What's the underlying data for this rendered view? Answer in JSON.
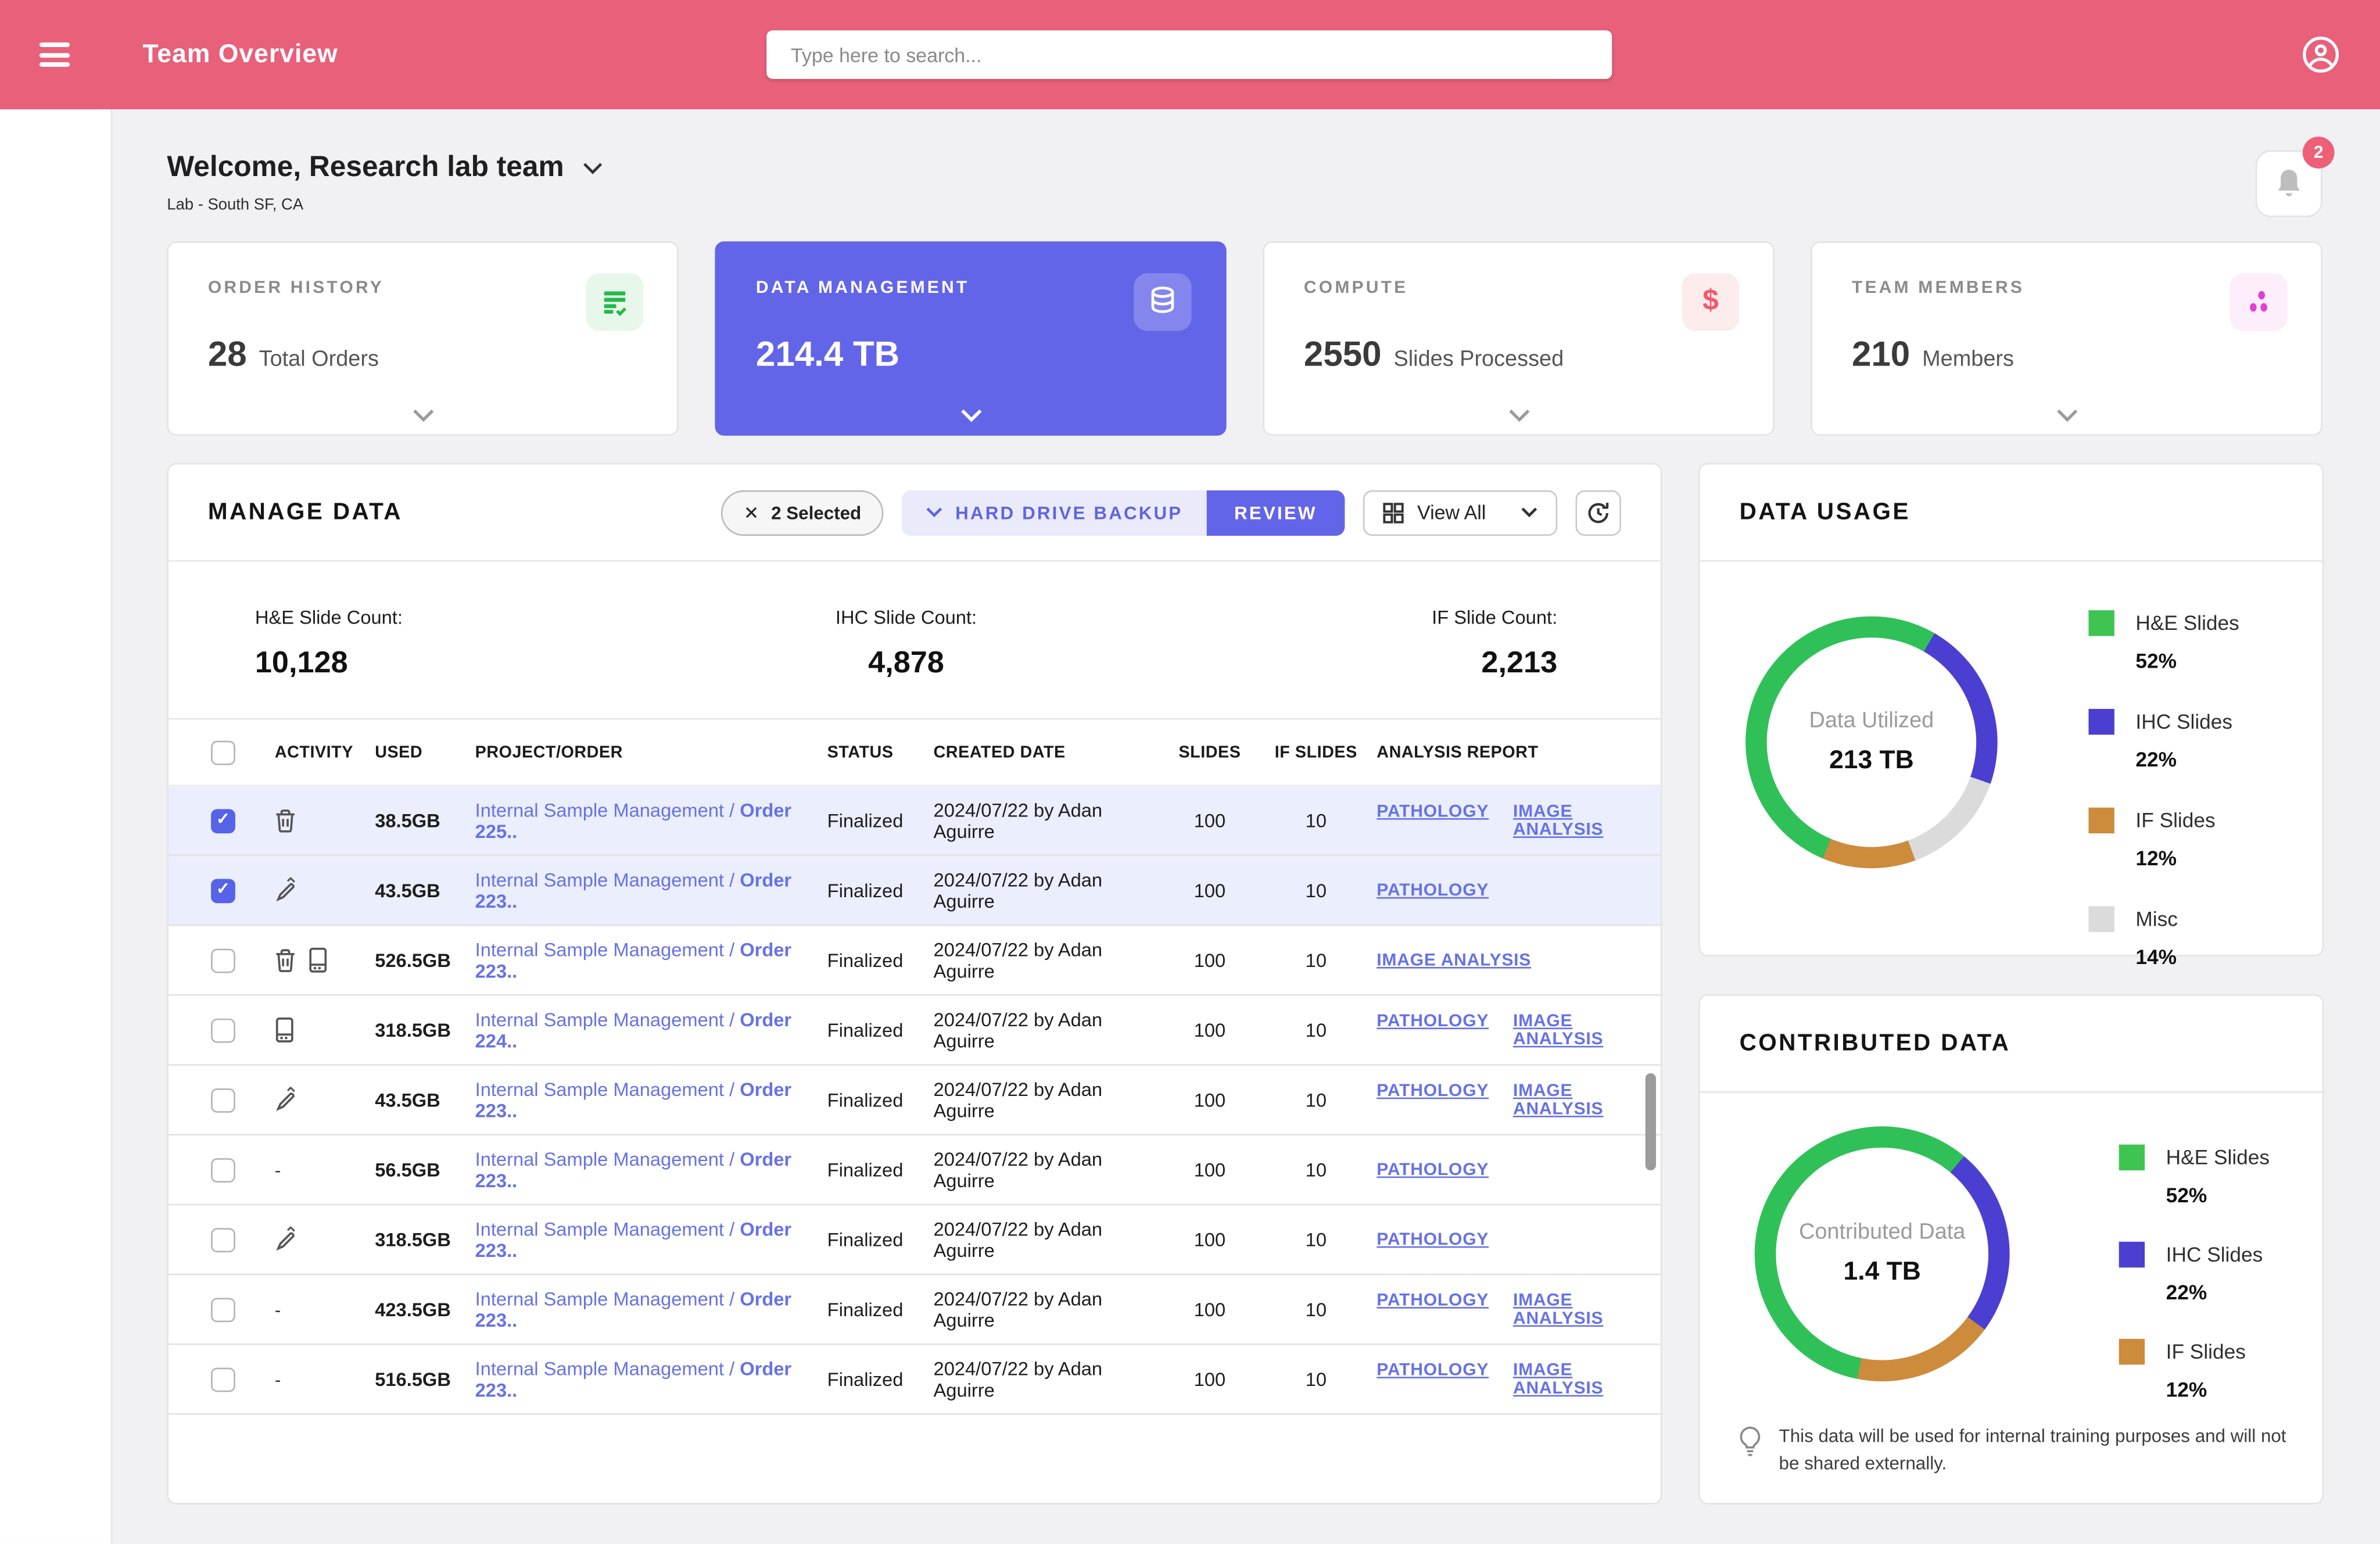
{
  "header": {
    "title": "Team Overview",
    "search_placeholder": "Type here to search..."
  },
  "welcome": {
    "greeting": "Welcome, Research lab team",
    "location": "Lab - South SF, CA",
    "notification_count": "2"
  },
  "stat_cards": [
    {
      "label": "ORDER HISTORY",
      "value": "28",
      "unit": "Total Orders",
      "icon": "order-checklist-icon",
      "accent": "#2fbf4e"
    },
    {
      "label": "DATA MANAGEMENT",
      "value": "214.4 TB",
      "unit": "",
      "icon": "database-icon",
      "accent": "#6365e8"
    },
    {
      "label": "COMPUTE",
      "value": "2550",
      "unit": "Slides Processed",
      "icon": "dollar-icon",
      "accent": "#f4586b"
    },
    {
      "label": "TEAM MEMBERS",
      "value": "210",
      "unit": "Members",
      "icon": "members-dots-icon",
      "accent": "#e23fd4"
    }
  ],
  "manage_data": {
    "title": "MANAGE DATA",
    "selected_chip": "2 Selected",
    "backup_button": "HARD DRIVE BACKUP",
    "review_button": "REVIEW",
    "view_all": "View All",
    "counts": [
      {
        "label": "H&E Slide Count:",
        "value": "10,128"
      },
      {
        "label": "IHC Slide Count:",
        "value": "4,878"
      },
      {
        "label": "IF Slide Count:",
        "value": "2,213"
      }
    ],
    "columns": {
      "activity": "ACTIVITY",
      "used": "USED",
      "project": "PROJECT/ORDER",
      "status": "STATUS",
      "created": "CREATED DATE",
      "slides": "SLIDES",
      "if_slides": "IF SLIDES",
      "report": "ANALYSIS REPORT"
    },
    "project_label": "Internal Sample Management / ",
    "rows": [
      {
        "checked": true,
        "activity": [
          "trash-icon"
        ],
        "used": "38.5GB",
        "order": "Order 225..",
        "status": "Finalized",
        "created": "2024/07/22 by Adan Aguirre",
        "slides": "100",
        "if_slides": "10",
        "reports": [
          "PATHOLOGY",
          "IMAGE ANALYSIS"
        ]
      },
      {
        "checked": true,
        "activity": [
          "fact-check-icon"
        ],
        "used": "43.5GB",
        "order": "Order 223..",
        "status": "Finalized",
        "created": "2024/07/22 by Adan Aguirre",
        "slides": "100",
        "if_slides": "10",
        "reports": [
          "PATHOLOGY"
        ]
      },
      {
        "checked": false,
        "activity": [
          "trash-icon",
          "storage-icon"
        ],
        "used": "526.5GB",
        "order": "Order 223..",
        "status": "Finalized",
        "created": "2024/07/22 by Adan Aguirre",
        "slides": "100",
        "if_slides": "10",
        "reports": [
          "IMAGE ANALYSIS"
        ]
      },
      {
        "checked": false,
        "activity": [
          "storage-icon"
        ],
        "used": "318.5GB",
        "order": "Order 224..",
        "status": "Finalized",
        "created": "2024/07/22 by Adan Aguirre",
        "slides": "100",
        "if_slides": "10",
        "reports": [
          "PATHOLOGY",
          "IMAGE ANALYSIS"
        ]
      },
      {
        "checked": false,
        "activity": [
          "fact-check-icon"
        ],
        "used": "43.5GB",
        "order": "Order 223..",
        "status": "Finalized",
        "created": "2024/07/22 by Adan Aguirre",
        "slides": "100",
        "if_slides": "10",
        "reports": [
          "PATHOLOGY",
          "IMAGE ANALYSIS"
        ]
      },
      {
        "checked": false,
        "activity": [],
        "activity_text": "-",
        "used": "56.5GB",
        "order": "Order 223..",
        "status": "Finalized",
        "created": "2024/07/22 by Adan Aguirre",
        "slides": "100",
        "if_slides": "10",
        "reports": [
          "PATHOLOGY"
        ]
      },
      {
        "checked": false,
        "activity": [
          "fact-check-icon"
        ],
        "used": "318.5GB",
        "order": "Order 223..",
        "status": "Finalized",
        "created": "2024/07/22 by Adan Aguirre",
        "slides": "100",
        "if_slides": "10",
        "reports": [
          "PATHOLOGY"
        ]
      },
      {
        "checked": false,
        "activity": [],
        "activity_text": "-",
        "used": "423.5GB",
        "order": "Order 223..",
        "status": "Finalized",
        "created": "2024/07/22 by Adan Aguirre",
        "slides": "100",
        "if_slides": "10",
        "reports": [
          "PATHOLOGY",
          "IMAGE ANALYSIS"
        ]
      },
      {
        "checked": false,
        "activity": [],
        "activity_text": "-",
        "used": "516.5GB",
        "order": "Order 223..",
        "status": "Finalized",
        "created": "2024/07/22 by Adan Aguirre",
        "slides": "100",
        "if_slides": "10",
        "reports": [
          "PATHOLOGY",
          "IMAGE ANALYSIS"
        ]
      }
    ]
  },
  "data_usage": {
    "title": "DATA USAGE",
    "center_label": "Data Utilized",
    "center_value": "213 TB",
    "legend": [
      {
        "label": "H&E Slides",
        "pct": "52%",
        "color": "#3fc452"
      },
      {
        "label": "IHC Slides",
        "pct": "22%",
        "color": "#4b3fd1"
      },
      {
        "label": "IF Slides",
        "pct": "12%",
        "color": "#cd8b3c"
      },
      {
        "label": "Misc",
        "pct": "14%",
        "color": "#dbdbdb"
      }
    ]
  },
  "contributed_data": {
    "title": "CONTRIBUTED DATA",
    "center_label": "Contributed Data",
    "center_value": "1.4 TB",
    "legend": [
      {
        "label": "H&E Slides",
        "pct": "52%",
        "color": "#3fc452"
      },
      {
        "label": "IHC Slides",
        "pct": "22%",
        "color": "#4b3fd1"
      },
      {
        "label": "IF Slides",
        "pct": "12%",
        "color": "#cd8b3c"
      }
    ],
    "note": "This data will be used for internal training purposes and will not be shared externally."
  },
  "chart_data": [
    {
      "type": "pie",
      "title": "Data Usage",
      "categories": [
        "H&E Slides",
        "IHC Slides",
        "IF Slides",
        "Misc"
      ],
      "values": [
        52,
        22,
        12,
        14
      ],
      "center_label": "Data Utilized",
      "center_value": "213 TB",
      "colors": [
        "#3fc452",
        "#4b3fd1",
        "#cd8b3c",
        "#dbdbdb"
      ],
      "legend_position": "right"
    },
    {
      "type": "pie",
      "title": "Contributed Data",
      "categories": [
        "H&E Slides",
        "IHC Slides",
        "IF Slides"
      ],
      "values": [
        52,
        22,
        12
      ],
      "center_label": "Contributed Data",
      "center_value": "1.4 TB",
      "colors": [
        "#3fc452",
        "#4b3fd1",
        "#cd8b3c"
      ],
      "legend_position": "right"
    }
  ]
}
